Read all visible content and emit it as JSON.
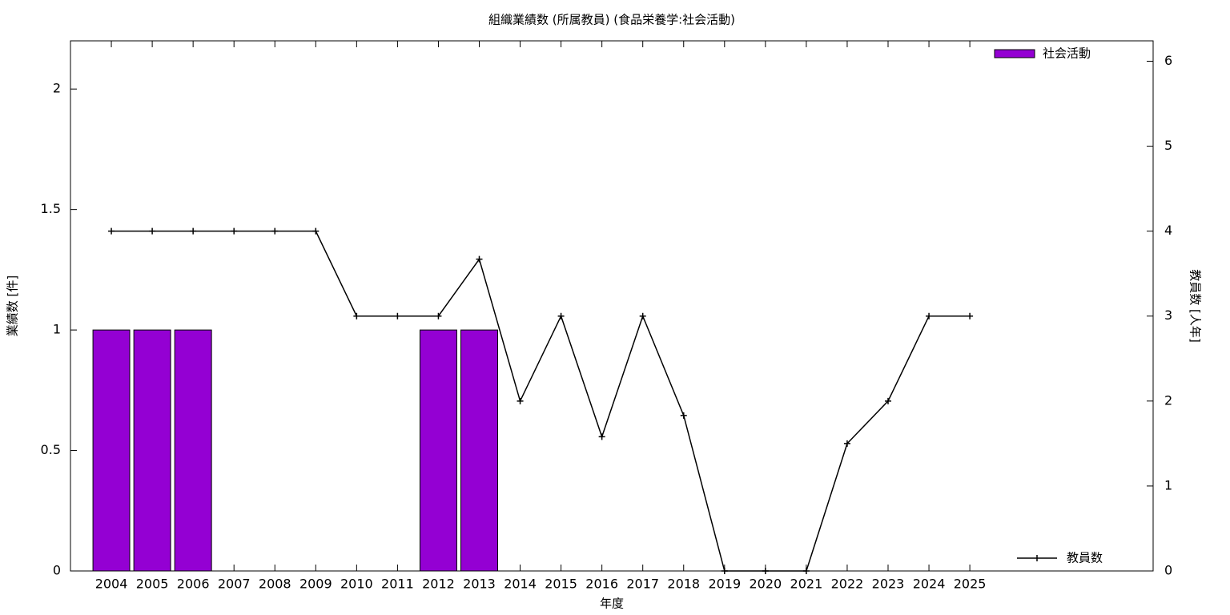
{
  "chart_data": {
    "type": "bar",
    "title": "組織業績数 (所属教員) (食品栄養学:社会活動)",
    "x_label": "年度",
    "y_label": "業績数 [件]",
    "y2_label": "教員数 [人年]",
    "categories": [
      "2004",
      "2005",
      "2006",
      "2007",
      "2008",
      "2009",
      "2010",
      "2011",
      "2012",
      "2013",
      "2014",
      "2015",
      "2016",
      "2017",
      "2018",
      "2019",
      "2020",
      "2021",
      "2022",
      "2023",
      "2024",
      "2025"
    ],
    "series": [
      {
        "name": "社会活動",
        "type": "bar",
        "color": "#9400d3",
        "legend": "top-right",
        "values": [
          1,
          1,
          1,
          0,
          0,
          0,
          0,
          0,
          1,
          1,
          0,
          0,
          0,
          0,
          0,
          0,
          0,
          0,
          0,
          0,
          0,
          0
        ]
      },
      {
        "name": "教員数",
        "type": "line",
        "axis": "y2",
        "color": "#000000",
        "legend": "bottom-right",
        "values": [
          4,
          4,
          4,
          4,
          4,
          4,
          3,
          3,
          3,
          3.67,
          2,
          3,
          1.58,
          3,
          1.83,
          0,
          0,
          0,
          1.5,
          2,
          3,
          3
        ]
      }
    ],
    "ylim": [
      0,
      2.2
    ],
    "yticks": [
      0,
      0.5,
      1,
      1.5,
      2
    ],
    "y2lim": [
      0,
      6.24
    ],
    "y2ticks": [
      0,
      1,
      2,
      3,
      4,
      5,
      6
    ],
    "grid": false
  }
}
